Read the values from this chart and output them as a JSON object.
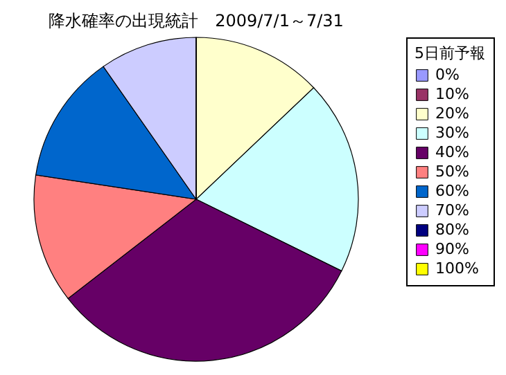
{
  "chart_data": {
    "type": "pie",
    "title": "降水確率の出現統計　2009/7/1～7/31",
    "legend_title": "5日前予報",
    "categories": [
      "0%",
      "10%",
      "20%",
      "30%",
      "40%",
      "50%",
      "60%",
      "70%",
      "80%",
      "90%",
      "100%"
    ],
    "values": [
      0,
      0,
      12.9,
      19.4,
      32.2,
      12.9,
      12.9,
      9.7,
      0,
      0,
      0
    ],
    "colors": [
      "#9999ff",
      "#993366",
      "#ffffcc",
      "#ccffff",
      "#660066",
      "#ff8080",
      "#0066cc",
      "#ccccff",
      "#000080",
      "#ff00ff",
      "#ffff00"
    ],
    "legend": "right"
  }
}
